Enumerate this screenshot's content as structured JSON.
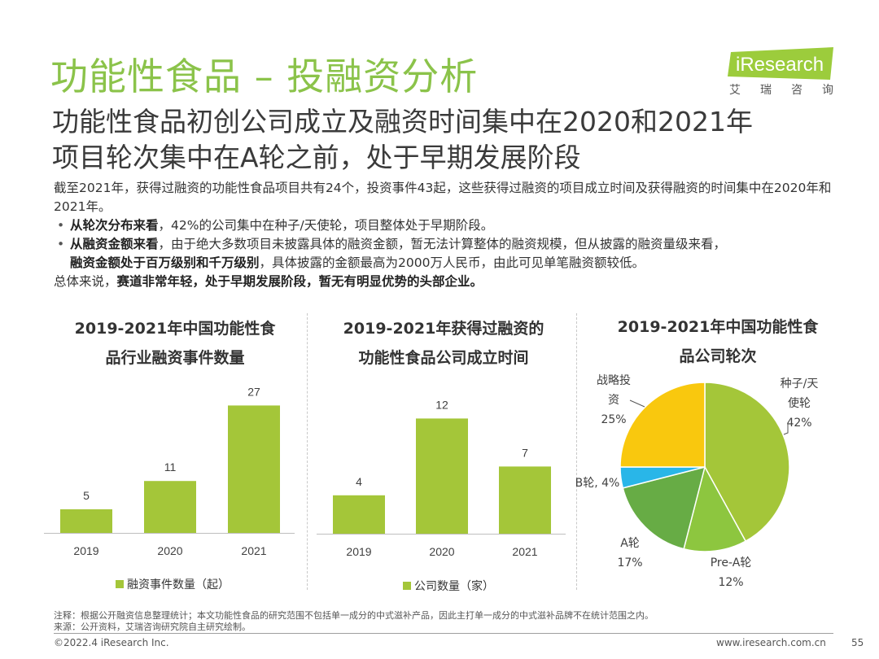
{
  "header": {
    "title": "功能性食品 – 投融资分析",
    "logo_text": "iResearch",
    "logo_sub": [
      "艾",
      "瑞",
      "咨",
      "询"
    ],
    "subtitle_lines": [
      "功能性食品初创公司成立及融资时间集中在2020和2021年",
      "项目轮次集中在A轮之前，处于早期发展阶段"
    ]
  },
  "intro": {
    "para1": "截至2021年，获得过融资的功能性食品项目共有24个，投资事件43起，这些获得过融资的项目成立时间及获得融资的时间集中在2020年和2021年。",
    "bullet1_bold": "从轮次分布来看",
    "bullet1_rest": "，42%的公司集中在种子/天使轮，项目整体处于早期阶段。",
    "bullet2_bold": "从融资金额来看",
    "bullet2_rest": "，由于绝大多数项目未披露具体的融资金额，暂无法计算整体的融资规模，但从披露的融资量级来看，",
    "bullet2_bold2": "融资金额处于百万级别和千万级别",
    "bullet2_rest2": "，具体披露的金额最高为2000万人民币，由此可见单笔融资额较低。",
    "summary_prefix": "总体来说，",
    "summary_bold": "赛道非常年轻，处于早期发展阶段，暂无有明显优势的头部企业。"
  },
  "chart_data": [
    {
      "type": "bar",
      "title_lines": [
        "2019-2021年中国功能性食",
        "品行业融资事件数量"
      ],
      "categories": [
        "2019",
        "2020",
        "2021"
      ],
      "values": [
        5,
        11,
        27
      ],
      "ylim": [
        0,
        30
      ],
      "legend": "融资事件数量（起）",
      "color": "#a4c639"
    },
    {
      "type": "bar",
      "title_lines": [
        "2019-2021年获得过融资的",
        "功能性食品公司成立时间"
      ],
      "categories": [
        "2019",
        "2020",
        "2021"
      ],
      "values": [
        4,
        12,
        7
      ],
      "ylim": [
        0,
        15
      ],
      "legend": "公司数量（家）",
      "color": "#a4c639"
    },
    {
      "type": "pie",
      "title_lines": [
        "2019-2021年中国功能性食",
        "品公司轮次"
      ],
      "slices": [
        {
          "label_lines": [
            "种子/天",
            "使轮"
          ],
          "pct_text": "42%",
          "value": 42,
          "color": "#a4c639"
        },
        {
          "label_lines": [
            "Pre-A轮"
          ],
          "pct_text": "12%",
          "value": 12,
          "color": "#8dc63f"
        },
        {
          "label_lines": [
            "A轮"
          ],
          "pct_text": "17%",
          "value": 17,
          "color": "#67ac45"
        },
        {
          "label_lines": [
            "B轮, 4%"
          ],
          "pct_text": "",
          "value": 4,
          "color": "#29b6e8"
        },
        {
          "label_lines": [
            "战略投",
            "资"
          ],
          "pct_text": "25%",
          "value": 25,
          "color": "#f9c80e"
        }
      ]
    }
  ],
  "footer": {
    "note1": "注释：根据公开融资信息整理统计；本文功能性食品的研究范围不包括单一成分的中式滋补产品，因此主打单一成分的中式滋补品牌不在统计范围之内。",
    "note2": "来源：公开资料，艾瑞咨询研究院自主研究绘制。",
    "copyright": "©2022.4 iResearch Inc.",
    "website": "www.iresearch.com.cn",
    "page": "55"
  },
  "colors": {
    "title_green": "#8bc34a",
    "bar_green": "#a4c639",
    "logo_green": "#9ccc3c"
  }
}
